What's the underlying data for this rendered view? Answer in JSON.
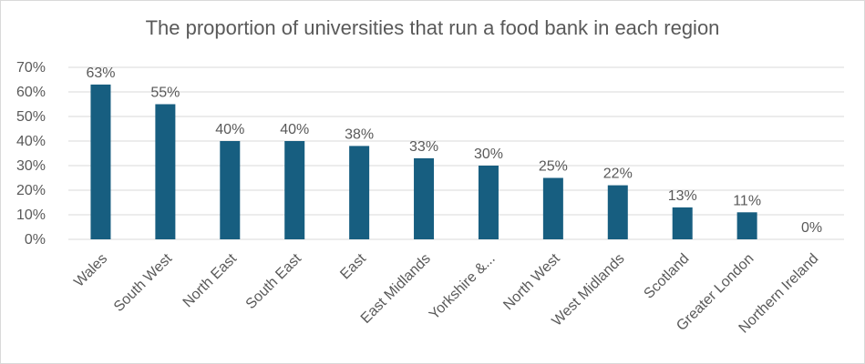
{
  "chart_data": {
    "type": "bar",
    "title": "The proportion of universities that run a food bank in each region",
    "categories": [
      "Wales",
      "South West",
      "North East",
      "South East",
      "East",
      "East Midlands",
      "Yorkshire &...",
      "North West",
      "West Midlands",
      "Scotland",
      "Greater London",
      "Northern Ireland"
    ],
    "values": [
      63,
      55,
      40,
      40,
      38,
      33,
      30,
      25,
      22,
      13,
      11,
      0
    ],
    "value_labels": [
      "63%",
      "55%",
      "40%",
      "40%",
      "38%",
      "33%",
      "30%",
      "25%",
      "22%",
      "13%",
      "11%",
      "0%"
    ],
    "yticks": [
      "0%",
      "10%",
      "20%",
      "30%",
      "40%",
      "50%",
      "60%",
      "70%"
    ],
    "ylim": [
      0,
      70
    ],
    "xlabel": "",
    "ylabel": "",
    "grid": true,
    "legend": "none",
    "colors": {
      "bar": "#175e80",
      "grid": "#d9d9d9",
      "text": "#595959"
    }
  }
}
